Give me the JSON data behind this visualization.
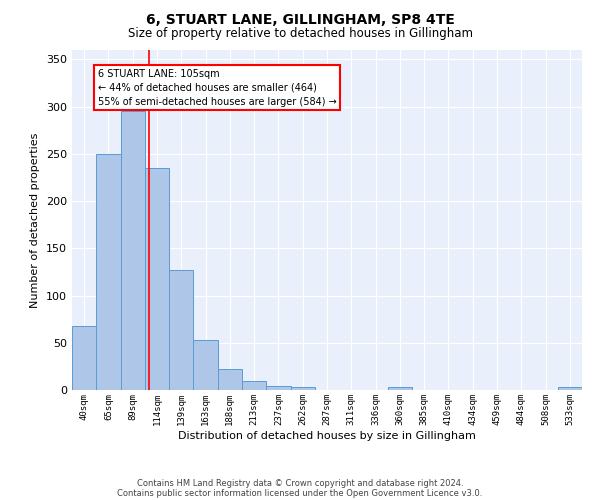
{
  "title": "6, STUART LANE, GILLINGHAM, SP8 4TE",
  "subtitle": "Size of property relative to detached houses in Gillingham",
  "xlabel": "Distribution of detached houses by size in Gillingham",
  "ylabel": "Number of detached properties",
  "footnote1": "Contains HM Land Registry data © Crown copyright and database right 2024.",
  "footnote2": "Contains public sector information licensed under the Open Government Licence v3.0.",
  "bin_labels": [
    "40sqm",
    "65sqm",
    "89sqm",
    "114sqm",
    "139sqm",
    "163sqm",
    "188sqm",
    "213sqm",
    "237sqm",
    "262sqm",
    "287sqm",
    "311sqm",
    "336sqm",
    "360sqm",
    "385sqm",
    "410sqm",
    "434sqm",
    "459sqm",
    "484sqm",
    "508sqm",
    "533sqm"
  ],
  "bar_values": [
    68,
    250,
    295,
    235,
    127,
    53,
    22,
    10,
    4,
    3,
    0,
    0,
    0,
    3,
    0,
    0,
    0,
    0,
    0,
    0,
    3
  ],
  "bar_color": "#aec6e8",
  "bar_edge_color": "#5b9bd5",
  "bg_color": "#eaf0fb",
  "grid_color": "#ffffff",
  "annotation_line1": "6 STUART LANE: 105sqm",
  "annotation_line2": "← 44% of detached houses are smaller (464)",
  "annotation_line3": "55% of semi-detached houses are larger (584) →",
  "red_line_x": 2.65,
  "ylim": [
    0,
    360
  ],
  "yticks": [
    0,
    50,
    100,
    150,
    200,
    250,
    300,
    350
  ]
}
